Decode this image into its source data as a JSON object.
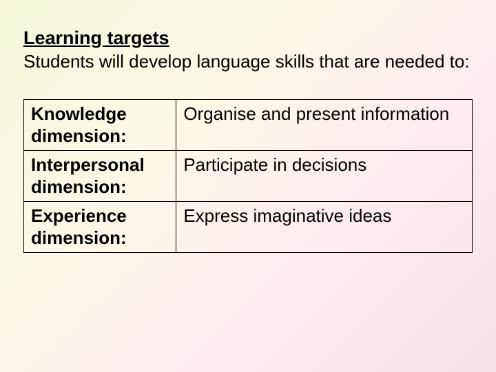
{
  "heading": "Learning targets",
  "subheading": "Students will develop language skills that are needed to:",
  "table": {
    "rows": [
      {
        "label": "Knowledge dimension:",
        "value": "Organise and present information"
      },
      {
        "label": "Interpersonal dimension:",
        "value": "Participate in decisions"
      },
      {
        "label": "Experience dimension:",
        "value": "Express imaginative ideas"
      }
    ]
  },
  "style": {
    "heading_font": "Comic Sans MS",
    "heading_fontsize_pt": 20,
    "heading_weight": "bold",
    "heading_underline": true,
    "body_font": "Arial",
    "body_fontsize_pt": 20,
    "table_border_color": "#000000",
    "background_gradient": [
      "#f5f8d8",
      "#fdf8e8",
      "#fcecf0",
      "#f8e0e8"
    ],
    "label_column_width_pct": 34
  }
}
